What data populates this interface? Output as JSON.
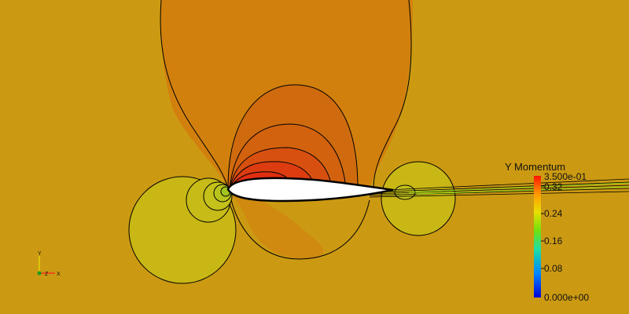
{
  "legend": {
    "title": "Y Momentum",
    "max_label": "3.500e-01",
    "min_label": "0.000e+00",
    "ticks": [
      "0.32",
      "0.24",
      "0.16",
      "0.08"
    ]
  },
  "axes": {
    "y": "Y",
    "z": "Z",
    "x": "X"
  },
  "colors": {
    "background": "#cc9a12",
    "upper_high": "#cf6b0e",
    "upper_mid": "#d2800d",
    "upper_peak": "#dc3c10",
    "lower_low": "#c9b715",
    "airfoil": "#ffffff",
    "contour_line": "#000000"
  }
}
